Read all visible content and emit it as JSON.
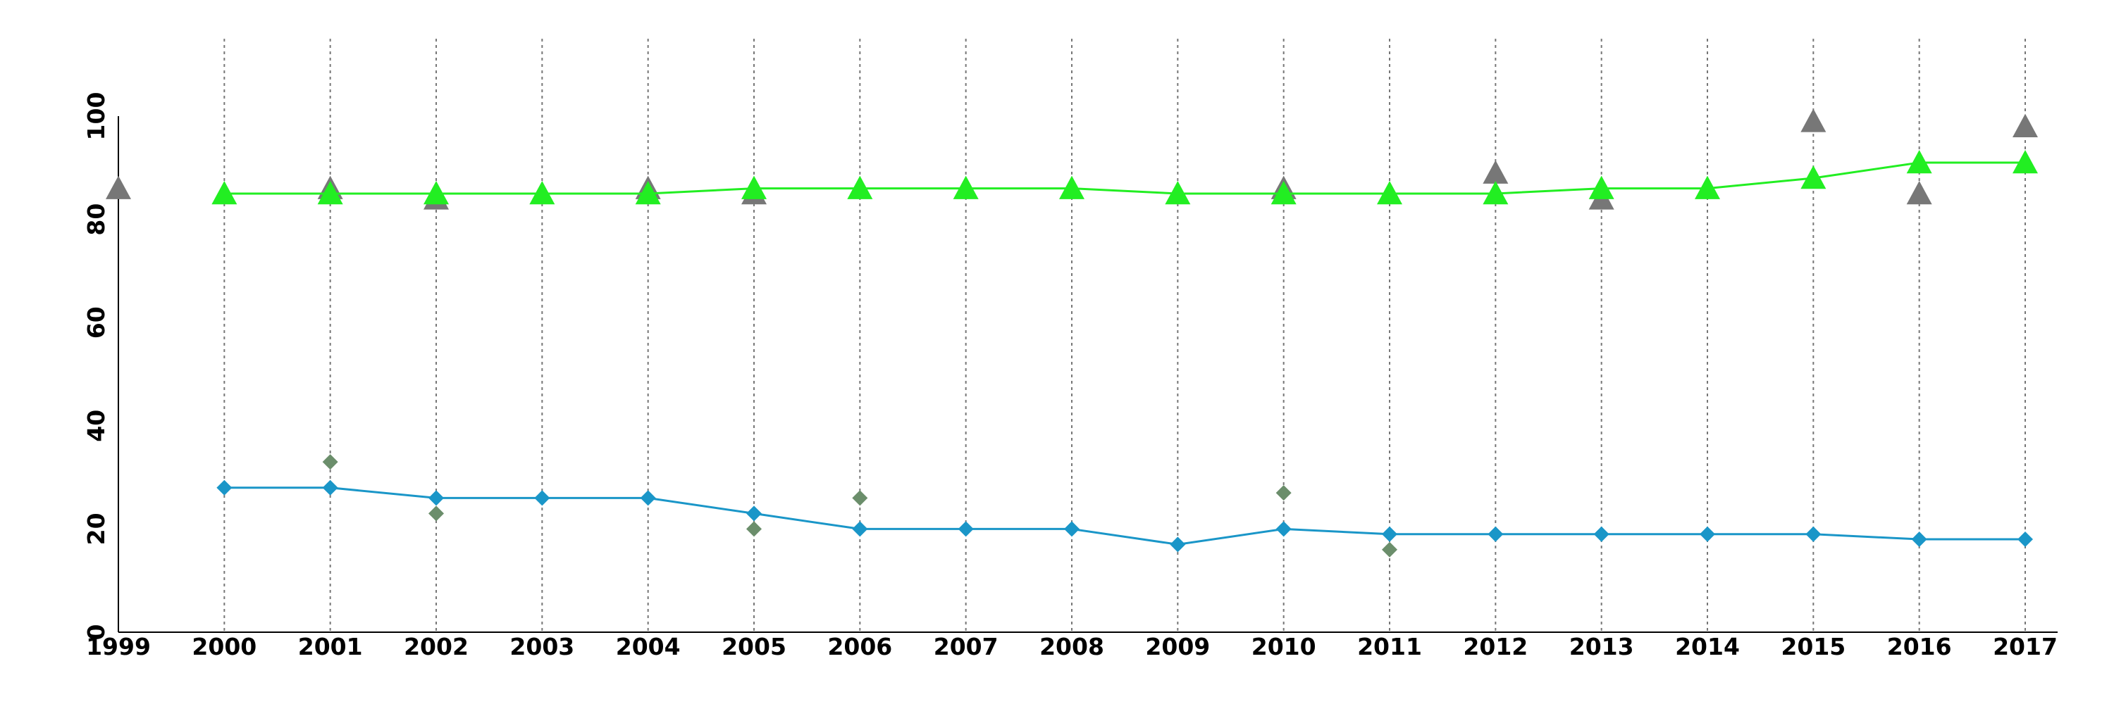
{
  "chart_data": {
    "type": "line",
    "title": "",
    "xlabel": "",
    "ylabel": "",
    "xlim": [
      1999,
      2017
    ],
    "ylim": [
      0,
      100
    ],
    "x_ticks": [
      "1999",
      "2000",
      "2001",
      "2002",
      "2003",
      "2004",
      "2005",
      "2006",
      "2007",
      "2008",
      "2009",
      "2010",
      "2011",
      "2012",
      "2013",
      "2014",
      "2015",
      "2016",
      "2017"
    ],
    "y_ticks": [
      "0",
      "20",
      "40",
      "60",
      "80",
      "100"
    ],
    "grid": "vertical dotted",
    "legend": "none",
    "series": [
      {
        "kind": "line",
        "marker": "triangle",
        "color": "#22ee22",
        "x": [
          2000,
          2001,
          2002,
          2003,
          2004,
          2005,
          2006,
          2007,
          2008,
          2009,
          2010,
          2011,
          2012,
          2013,
          2014,
          2015,
          2016,
          2017
        ],
        "y": [
          85,
          85,
          85,
          85,
          85,
          86,
          86,
          86,
          86,
          85,
          85,
          85,
          85,
          86,
          86,
          88,
          91,
          91
        ]
      },
      {
        "kind": "scatter",
        "marker": "triangle",
        "color": "#777777",
        "x": [
          1999,
          2001,
          2002,
          2004,
          2005,
          2010,
          2012,
          2013,
          2015,
          2016,
          2017
        ],
        "y": [
          86,
          86,
          84,
          86,
          85,
          86,
          89,
          84,
          99,
          85,
          98
        ]
      },
      {
        "kind": "line",
        "marker": "diamond",
        "color": "#1a96c8",
        "x": [
          2000,
          2001,
          2002,
          2003,
          2004,
          2005,
          2006,
          2007,
          2008,
          2009,
          2010,
          2011,
          2012,
          2013,
          2014,
          2015,
          2016,
          2017
        ],
        "y": [
          28,
          28,
          26,
          26,
          26,
          23,
          20,
          20,
          20,
          17,
          20,
          19,
          19,
          19,
          19,
          19,
          18,
          18
        ]
      },
      {
        "kind": "scatter",
        "marker": "diamond",
        "color": "#6b8e6b",
        "x": [
          2001,
          2002,
          2005,
          2006,
          2010,
          2011
        ],
        "y": [
          33,
          23,
          20,
          26,
          27,
          16
        ]
      }
    ]
  }
}
